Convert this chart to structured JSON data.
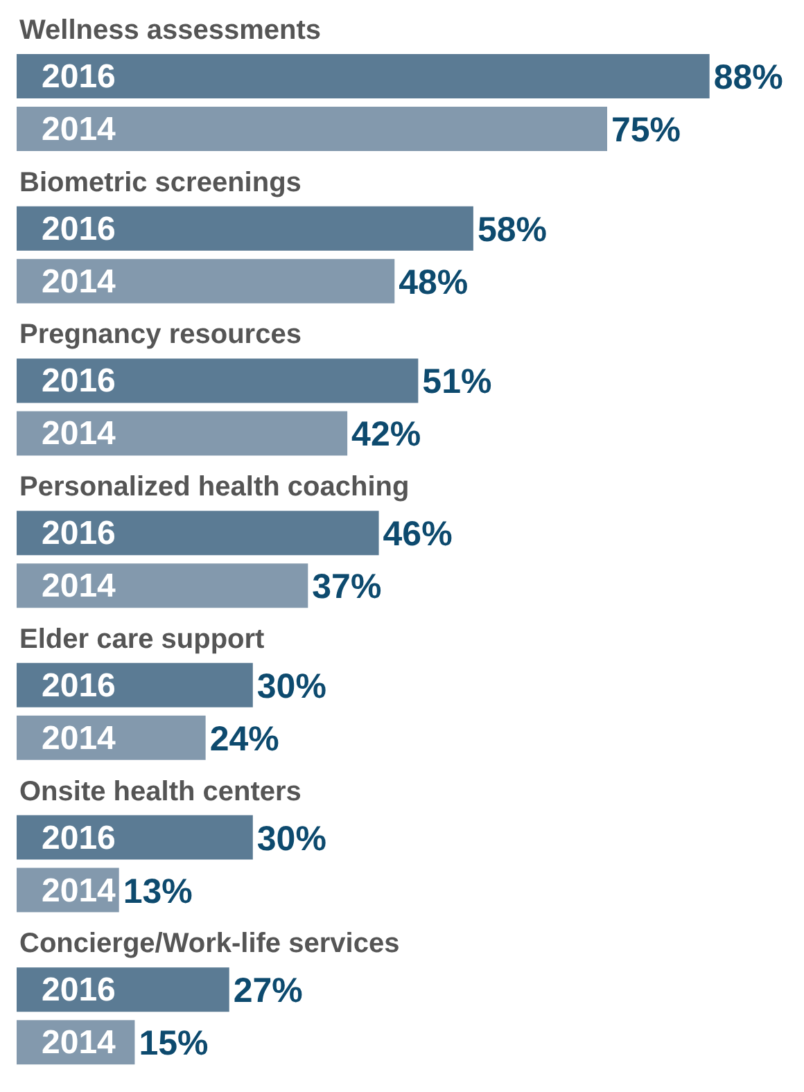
{
  "chart_data": {
    "type": "bar",
    "orientation": "horizontal",
    "categories": [
      "Wellness assessments",
      "Biometric screenings",
      "Pregnancy resources",
      "Personalized health coaching",
      "Elder care support",
      "Onsite health centers",
      "Concierge/Work-life services"
    ],
    "tick_labels": false,
    "series": [
      {
        "name": "2016",
        "color": "#5b7b94",
        "values": [
          88,
          58,
          51,
          46,
          30,
          30,
          27
        ],
        "value_labels": [
          "88%",
          "58%",
          "51%",
          "46%",
          "30%",
          "30%",
          "27%"
        ]
      },
      {
        "name": "2014",
        "color": "#8399ad",
        "values": [
          75,
          48,
          42,
          37,
          24,
          13,
          15
        ],
        "value_labels": [
          "75%",
          "48%",
          "42%",
          "37%",
          "24%",
          "13%",
          "15%"
        ]
      }
    ]
  }
}
